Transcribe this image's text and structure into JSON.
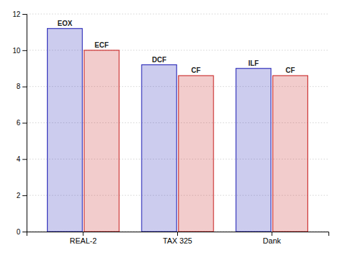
{
  "chart_data": {
    "type": "bar",
    "categories": [
      "REAL-2",
      "TAX 325",
      "Dank"
    ],
    "series": [
      {
        "color": "#3333bb",
        "values": [
          11.2,
          9.2,
          9.0
        ],
        "labels": [
          "EOX",
          "DCF",
          "ILF"
        ]
      },
      {
        "color": "#cc3333",
        "values": [
          10.0,
          8.6,
          8.6
        ],
        "labels": [
          "ECF",
          "CF",
          "CF"
        ]
      }
    ],
    "ylim": [
      0,
      12
    ],
    "yticks": [
      0,
      2,
      4,
      6,
      8,
      10,
      12
    ],
    "grid": true
  }
}
